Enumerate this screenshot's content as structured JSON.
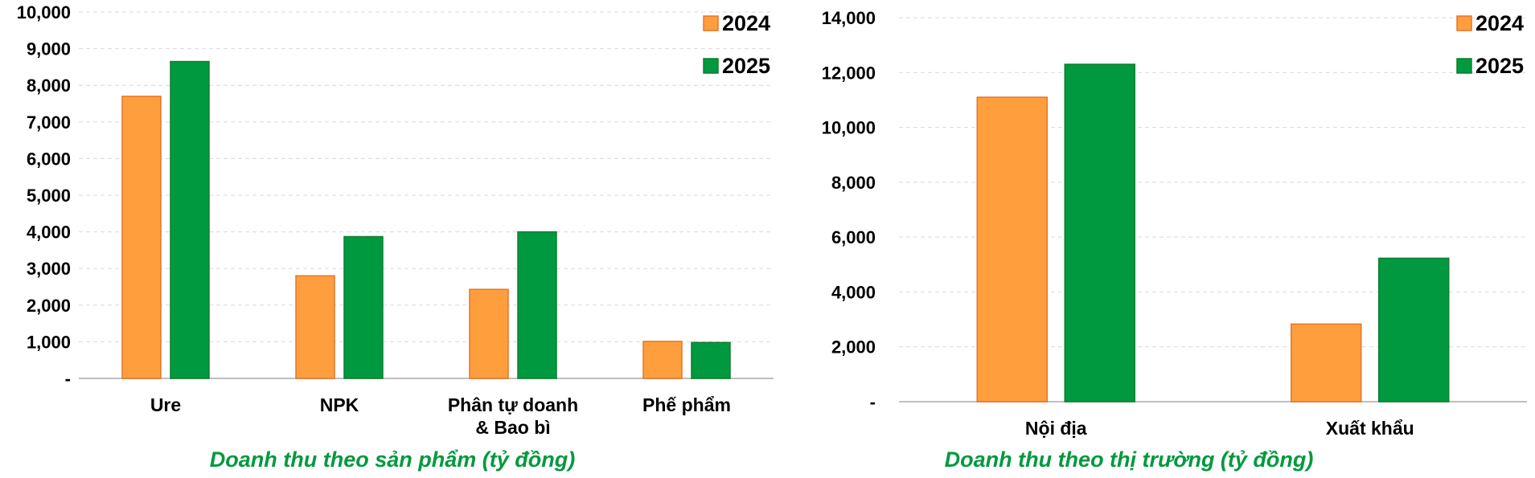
{
  "colors": {
    "s2024_fill": "#FF9E3D",
    "s2024_stroke": "#E8742A",
    "s2025_fill": "#00993F",
    "s2025_stroke": "#0E7F2E",
    "title": "#00993F",
    "grid": "#D9D9D9",
    "axis": "#BFBFBF"
  },
  "chart_data": [
    {
      "type": "bar",
      "title": "Doanh thu theo sản phẩm (tỷ đồng)",
      "categories": [
        [
          "Ure"
        ],
        [
          "NPK"
        ],
        [
          "Phân tự doanh",
          "& Bao bì"
        ],
        [
          "Phế phẩm"
        ]
      ],
      "series": [
        {
          "name": "2024",
          "values": [
            7700,
            2800,
            2430,
            1010
          ]
        },
        {
          "name": "2025",
          "values": [
            8650,
            3870,
            4000,
            980
          ]
        }
      ],
      "ylim": [
        0,
        10000
      ],
      "yticks": [
        0,
        1000,
        2000,
        3000,
        4000,
        5000,
        6000,
        7000,
        8000,
        9000,
        10000
      ],
      "ytick_labels": [
        "-",
        "1,000",
        "2,000",
        "3,000",
        "4,000",
        "5,000",
        "6,000",
        "7,000",
        "8,000",
        "9,000",
        "10,000"
      ],
      "grid": true,
      "legend": "top-right"
    },
    {
      "type": "bar",
      "title": "Doanh thu theo thị trường (tỷ đồng)",
      "categories": [
        [
          "Nội địa"
        ],
        [
          "Xuất khẩu"
        ]
      ],
      "series": [
        {
          "name": "2024",
          "values": [
            11100,
            2830
          ]
        },
        {
          "name": "2025",
          "values": [
            12300,
            5230
          ]
        }
      ],
      "ylim": [
        0,
        14000
      ],
      "yticks": [
        0,
        2000,
        4000,
        6000,
        8000,
        10000,
        12000,
        14000
      ],
      "ytick_labels": [
        "-",
        "2,000",
        "4,000",
        "6,000",
        "8,000",
        "10,000",
        "12,000",
        "14,000"
      ],
      "grid": true,
      "legend": "top-right"
    }
  ]
}
